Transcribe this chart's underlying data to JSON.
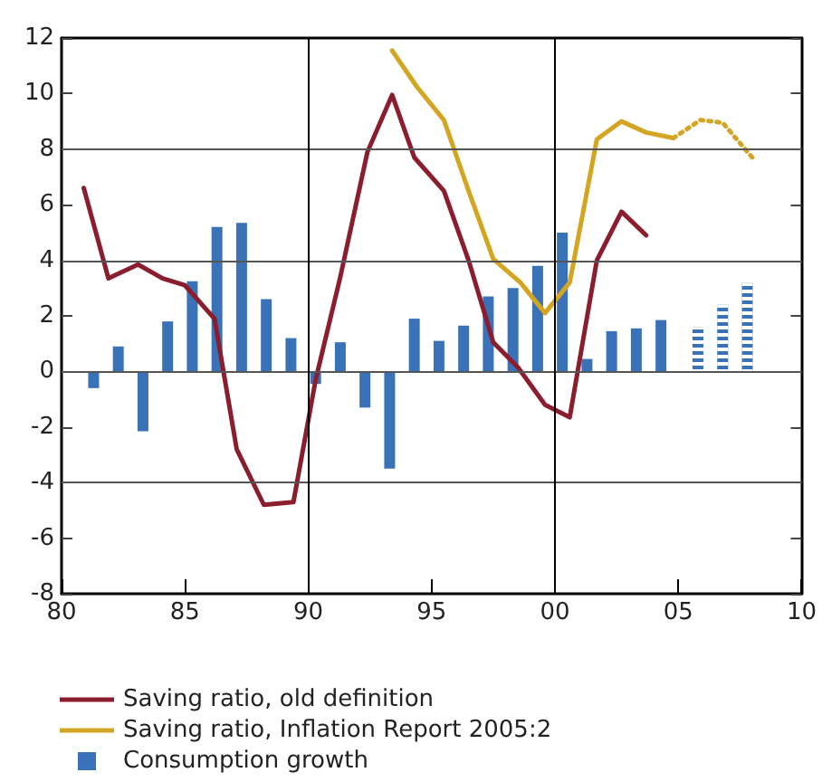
{
  "chart_data": {
    "type": "line",
    "xlim": [
      1980,
      2010
    ],
    "xticks": [
      {
        "value": 1980,
        "label": "80"
      },
      {
        "value": 1985,
        "label": "85"
      },
      {
        "value": 1990,
        "label": "90"
      },
      {
        "value": 1995,
        "label": "95"
      },
      {
        "value": 2000,
        "label": "00"
      },
      {
        "value": 2005,
        "label": "05"
      },
      {
        "value": 2010,
        "label": "10"
      }
    ],
    "ylim": [
      -8,
      12
    ],
    "yticks": [
      -8,
      -6,
      -4,
      -2,
      0,
      2,
      4,
      6,
      8,
      10,
      12
    ],
    "grid": false,
    "legend": "bottom left",
    "ref_lines": [
      {
        "axis": "y",
        "value": 8,
        "color": "#555555"
      },
      {
        "axis": "y",
        "value": 4,
        "color": "#555555"
      },
      {
        "axis": "y",
        "value": 0,
        "color": "#555555"
      },
      {
        "axis": "y",
        "value": -4,
        "color": "#555555"
      },
      {
        "axis": "x",
        "value": 1990,
        "color": "#000000"
      },
      {
        "axis": "x",
        "value": 2000,
        "color": "#000000"
      }
    ],
    "series": [
      {
        "name": "Saving ratio, old definition",
        "color": "#8b1e2e",
        "line_style": "solid",
        "x": [
          1980.9,
          1981.9,
          1983.1,
          1984.1,
          1985.0,
          1986.2,
          1987.1,
          1988.2,
          1989.4,
          1990.3,
          1991.3,
          1992.4,
          1993.4,
          1994.3,
          1995.5,
          1996.5,
          1997.5,
          1998.5,
          1999.6,
          2000.6,
          2001.7,
          2002.7,
          2003.7
        ],
        "values": [
          6.6,
          3.35,
          3.85,
          3.35,
          3.1,
          1.9,
          -2.8,
          -4.8,
          -4.7,
          -0.3,
          3.4,
          7.9,
          9.95,
          7.7,
          6.5,
          4.0,
          1.05,
          0.15,
          -1.2,
          -1.65,
          4.0,
          5.75,
          4.9
        ]
      },
      {
        "name": "Saving ratio, Inflation Report 2005:2",
        "color": "#d4a520",
        "line_style": "solid",
        "x": [
          1993.4,
          1994.4,
          1995.5,
          1996.5,
          1997.5,
          1998.6,
          1999.6,
          2000.6,
          2001.7,
          2002.7,
          2003.7,
          2004.8
        ],
        "values": [
          11.55,
          10.25,
          9.05,
          6.5,
          4.05,
          3.2,
          2.1,
          3.2,
          8.35,
          9.0,
          8.6,
          8.4
        ]
      },
      {
        "color": "#d4a520",
        "line_style": "dotted",
        "x": [
          2004.8,
          2005.9,
          2006.8,
          2008.0
        ],
        "values": [
          8.4,
          9.05,
          8.95,
          7.7
        ]
      },
      {
        "type": "bar",
        "name": "Consumption growth",
        "color": "#3a72b8",
        "x": [
          1981.3,
          1982.3,
          1983.3,
          1984.3,
          1985.3,
          1986.3,
          1987.3,
          1988.3,
          1989.3,
          1990.3,
          1991.3,
          1992.3,
          1993.3,
          1994.3,
          1995.3,
          1996.3,
          1997.3,
          1998.3,
          1999.3,
          2000.3,
          2001.3,
          2002.3,
          2003.3,
          2004.3
        ],
        "values": [
          -0.6,
          0.9,
          -2.15,
          1.8,
          3.25,
          5.2,
          5.35,
          2.6,
          1.2,
          -0.45,
          1.05,
          -1.3,
          -3.5,
          1.9,
          1.1,
          1.65,
          2.7,
          3.0,
          3.8,
          5.0,
          0.45,
          1.45,
          1.55,
          1.85
        ]
      },
      {
        "type": "bar",
        "color": "#3a72b8",
        "line_style": "dashed",
        "x": [
          2005.8,
          2006.8,
          2007.8
        ],
        "values": [
          1.6,
          2.4,
          3.2
        ]
      }
    ]
  }
}
